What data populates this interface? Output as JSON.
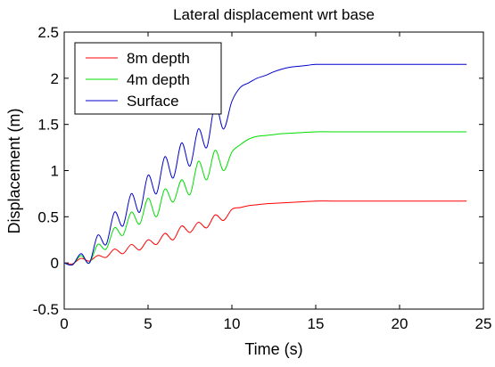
{
  "chart_data": {
    "type": "line",
    "title": "Lateral displacement wrt base",
    "xlabel": "Time (s)",
    "ylabel": "Displacement (m)",
    "xlim": [
      0,
      25
    ],
    "ylim": [
      -0.5,
      2.5
    ],
    "x_ticks": [
      "0",
      "5",
      "10",
      "15",
      "20",
      "25"
    ],
    "y_ticks": [
      "-0.5",
      "0",
      "0.5",
      "1",
      "1.5",
      "2",
      "2.5"
    ],
    "grid": false,
    "legend": "top-left",
    "series": [
      {
        "name": "8m depth",
        "color": "#ff0000",
        "x": [
          0,
          0.5,
          1.0,
          1.5,
          2.0,
          2.5,
          3.0,
          3.5,
          4.0,
          4.5,
          5.0,
          5.5,
          6.0,
          6.5,
          7.0,
          7.5,
          8.0,
          8.5,
          9.0,
          9.5,
          10.0,
          10.5,
          11.0,
          11.5,
          12.0,
          13.0,
          14.0,
          15.0,
          16.0,
          18.0,
          20.0,
          22.0,
          24.0
        ],
        "y": [
          0,
          -0.01,
          0.05,
          0.02,
          0.08,
          0.06,
          0.15,
          0.1,
          0.2,
          0.14,
          0.25,
          0.2,
          0.32,
          0.25,
          0.4,
          0.33,
          0.44,
          0.38,
          0.52,
          0.46,
          0.58,
          0.6,
          0.62,
          0.63,
          0.64,
          0.65,
          0.66,
          0.67,
          0.67,
          0.67,
          0.67,
          0.67,
          0.67
        ]
      },
      {
        "name": "4m depth",
        "color": "#00dd00",
        "x": [
          0,
          0.5,
          1.0,
          1.5,
          2.0,
          2.5,
          3.0,
          3.5,
          4.0,
          4.5,
          5.0,
          5.5,
          6.0,
          6.5,
          7.0,
          7.5,
          8.0,
          8.5,
          9.0,
          9.5,
          10.0,
          10.5,
          11.0,
          11.5,
          12.0,
          12.5,
          13.0,
          14.0,
          15.0,
          16.0,
          18.0,
          20.0,
          22.0,
          24.0
        ],
        "y": [
          0,
          -0.02,
          0.08,
          0.0,
          0.2,
          0.15,
          0.38,
          0.3,
          0.55,
          0.42,
          0.7,
          0.5,
          0.8,
          0.66,
          0.9,
          0.74,
          1.1,
          0.9,
          1.22,
          1.0,
          1.2,
          1.28,
          1.34,
          1.37,
          1.38,
          1.39,
          1.4,
          1.41,
          1.42,
          1.42,
          1.42,
          1.42,
          1.42,
          1.42
        ]
      },
      {
        "name": "Surface",
        "color": "#0000cc",
        "x": [
          0,
          0.5,
          1.0,
          1.5,
          2.0,
          2.5,
          3.0,
          3.5,
          4.0,
          4.5,
          5.0,
          5.5,
          6.0,
          6.5,
          7.0,
          7.5,
          8.0,
          8.5,
          9.0,
          9.5,
          10.0,
          10.5,
          11.0,
          11.5,
          12.0,
          12.5,
          13.0,
          13.5,
          14.0,
          14.5,
          15.0,
          16.0,
          18.0,
          20.0,
          22.0,
          24.0
        ],
        "y": [
          0,
          -0.02,
          0.1,
          0.0,
          0.3,
          0.2,
          0.55,
          0.4,
          0.75,
          0.55,
          0.95,
          0.75,
          1.15,
          0.92,
          1.3,
          1.05,
          1.45,
          1.25,
          1.72,
          1.45,
          1.75,
          1.9,
          1.95,
          2.0,
          2.03,
          2.07,
          2.1,
          2.12,
          2.13,
          2.14,
          2.15,
          2.15,
          2.15,
          2.15,
          2.15,
          2.15
        ]
      }
    ]
  }
}
